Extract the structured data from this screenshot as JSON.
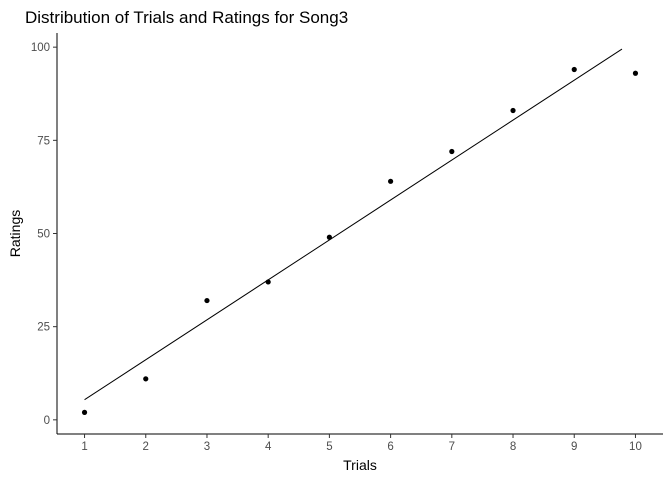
{
  "chart_data": {
    "type": "scatter",
    "title": "Distribution of Trials and Ratings for Song3",
    "xlabel": "Trials",
    "ylabel": "Ratings",
    "xlim": [
      0.55,
      10.45
    ],
    "ylim": [
      -3.8,
      103.8
    ],
    "x_ticks": [
      1,
      2,
      3,
      4,
      5,
      6,
      7,
      8,
      9,
      10
    ],
    "y_ticks": [
      0,
      25,
      50,
      75,
      100
    ],
    "x_tick_labels": [
      "1",
      "2",
      "3",
      "4",
      "5",
      "6",
      "7",
      "8",
      "9",
      "10"
    ],
    "y_tick_labels": [
      "0",
      "25",
      "50",
      "75",
      "100"
    ],
    "grid": false,
    "series": [
      {
        "x": [
          1,
          2,
          3,
          4,
          5,
          6,
          7,
          8,
          9,
          10
        ],
        "y": [
          2,
          11,
          32,
          37,
          49,
          64,
          72,
          83,
          94,
          93
        ],
        "color": "#000000"
      }
    ],
    "trend_line": {
      "x": [
        1,
        9.78
      ],
      "y": [
        5.4,
        99.5
      ],
      "color": "#000000"
    }
  }
}
